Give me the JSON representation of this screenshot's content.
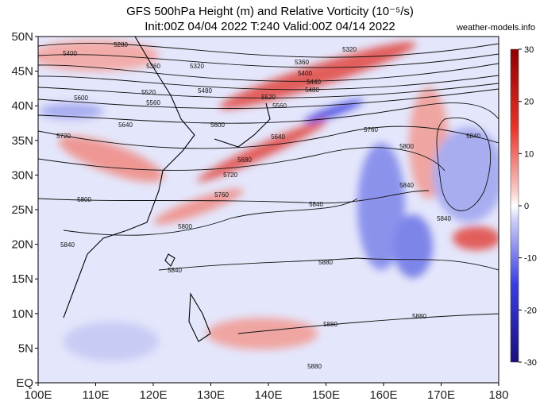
{
  "title": {
    "line1": "GFS 500hPa Height (m) and Relative Vorticity (10⁻⁵/s)",
    "line2": "Init:00Z 04/04 2022 T:240 Valid:00Z 04/14 2022"
  },
  "source": "weather-models.info",
  "map": {
    "lat_labels": [
      "50N",
      "45N",
      "40N",
      "35N",
      "30N",
      "25N",
      "20N",
      "15N",
      "10N",
      "5N",
      "EQ"
    ],
    "lon_labels": [
      "100E",
      "110E",
      "120E",
      "130E",
      "140E",
      "150E",
      "160E",
      "170E",
      "180"
    ],
    "contour_labels": [
      "5280",
      "5400",
      "5360",
      "5320",
      "5320",
      "5360",
      "5400",
      "5440",
      "5480",
      "5520",
      "5520",
      "5480",
      "5560",
      "5600",
      "5560",
      "5640",
      "5600",
      "5720",
      "5640",
      "5760",
      "5800",
      "5840",
      "5680",
      "5720",
      "5760",
      "5800",
      "5840",
      "5840",
      "5840",
      "5800",
      "5840",
      "5840",
      "5880",
      "5880",
      "5880",
      "5880"
    ]
  },
  "colorbar": {
    "ticks": [
      30,
      20,
      10,
      0,
      -10,
      -20,
      -30
    ]
  }
}
